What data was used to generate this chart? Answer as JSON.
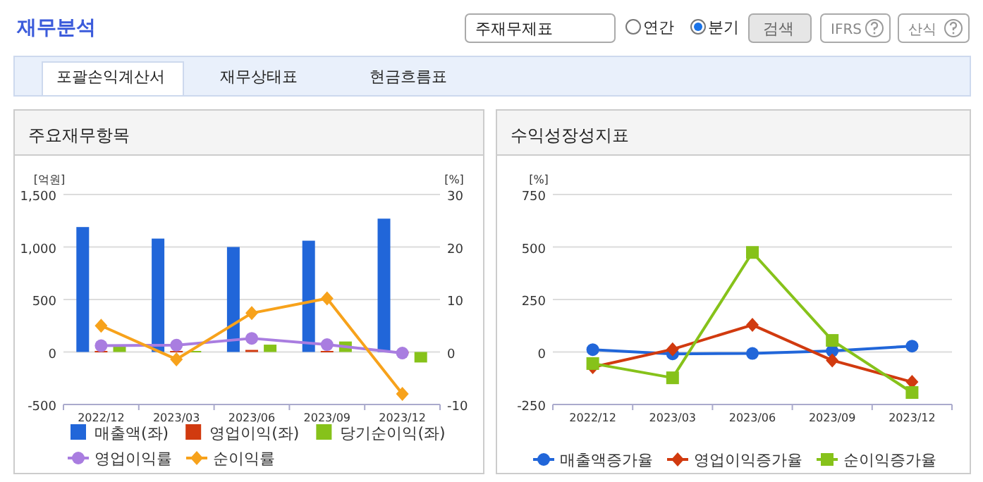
{
  "chart_data": [
    {
      "type": "bar",
      "title": "주요재무항목",
      "ylabel": "[억원]",
      "y2label": "[%]",
      "categories": [
        "2022/12",
        "2023/03",
        "2023/06",
        "2023/09",
        "2023/12"
      ],
      "ylim": [
        -500,
        1500
      ],
      "yticks": [
        -500,
        0,
        500,
        {
          "value": 1000,
          "label": "1,000"
        },
        {
          "value": 1500,
          "label": "1,500"
        }
      ],
      "y2lim": [
        -10,
        30
      ],
      "y2ticks": [
        -10,
        0,
        10,
        20,
        30
      ],
      "grid": "y",
      "legend": "bottom",
      "series": [
        {
          "name": "매출액(좌)",
          "type": "bar",
          "color": "#2166d9",
          "values": [
            1190,
            1080,
            1000,
            1060,
            1270
          ]
        },
        {
          "name": "영업이익(좌)",
          "type": "bar",
          "color": "#d13a0f",
          "values": [
            10,
            10,
            20,
            10,
            0
          ]
        },
        {
          "name": "당기순이익(좌)",
          "type": "bar",
          "color": "#86c21a",
          "values": [
            60,
            10,
            70,
            100,
            -100
          ]
        },
        {
          "name": "영업이익률",
          "type": "line",
          "axis": "y2",
          "marker": "circle",
          "color": "#a97de0",
          "values": [
            1.2,
            1.3,
            2.6,
            1.4,
            -0.2
          ]
        },
        {
          "name": "순이익률",
          "type": "line",
          "axis": "y2",
          "marker": "diamond",
          "color": "#f7a21b",
          "values": [
            5.0,
            -1.4,
            7.4,
            10.2,
            -8.0
          ]
        }
      ],
      "annotations": [
        "재무분석",
        "주재무제표",
        "연간",
        "분기",
        "검색",
        "IFRS",
        "산식",
        "포괄손익계산서",
        "재무상태표",
        "현금흐름표"
      ]
    },
    {
      "type": "line",
      "title": "수익성장성지표",
      "ylabel": "[%]",
      "categories": [
        "2022/12",
        "2023/03",
        "2023/06",
        "2023/09",
        "2023/12"
      ],
      "ylim": [
        -250,
        750
      ],
      "yticks": [
        -250,
        0,
        250,
        500,
        750
      ],
      "grid": "y",
      "legend": "bottom",
      "series": [
        {
          "name": "매출액증가율",
          "marker": "circle",
          "color": "#2166d9",
          "values": [
            11,
            -9,
            -7,
            5,
            28
          ]
        },
        {
          "name": "영업이익증가율",
          "marker": "diamond",
          "color": "#d13a0f",
          "values": [
            -72,
            13,
            129,
            -40,
            -143
          ]
        },
        {
          "name": "순이익증가율",
          "marker": "square",
          "color": "#86c21a",
          "values": [
            -55,
            -123,
            474,
            55,
            -193
          ]
        }
      ]
    }
  ]
}
